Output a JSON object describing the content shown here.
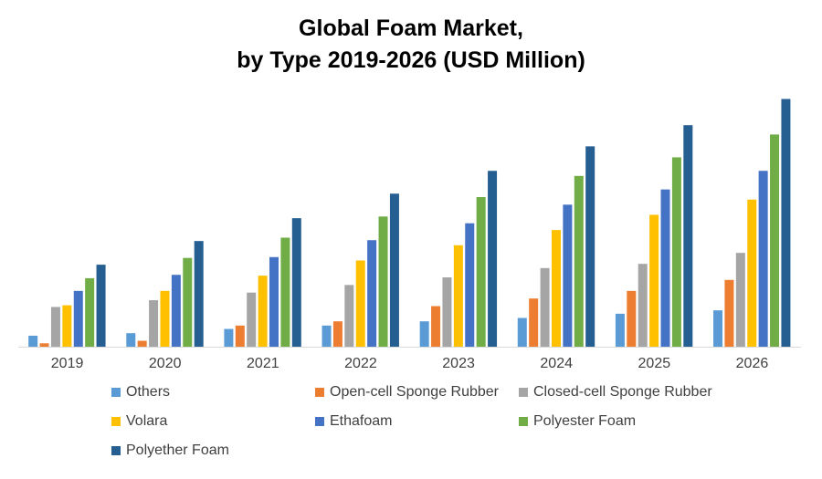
{
  "chart_data": {
    "type": "bar",
    "title_line1": "Global Foam Market,",
    "title_line2": "by Type 2019-2026 (USD Million)",
    "xlabel": "",
    "ylabel": "",
    "categories": [
      "2019",
      "2020",
      "2021",
      "2022",
      "2023",
      "2024",
      "2025",
      "2026"
    ],
    "ylim": [
      0,
      300
    ],
    "grid": false,
    "legend_position": "bottom",
    "series": [
      {
        "name": "Others",
        "color": "#5B9BD5",
        "values": [
          13,
          16,
          21,
          25,
          30,
          34,
          39,
          43
        ]
      },
      {
        "name": "Open-cell Sponge Rubber",
        "color": "#ED7D31",
        "values": [
          4,
          7,
          25,
          30,
          48,
          57,
          66,
          79
        ]
      },
      {
        "name": "Closed-cell Sponge Rubber",
        "color": "#A5A5A5",
        "values": [
          47,
          55,
          64,
          73,
          82,
          93,
          98,
          111
        ]
      },
      {
        "name": "Volara",
        "color": "#FFC000",
        "values": [
          49,
          66,
          84,
          102,
          120,
          138,
          156,
          174
        ]
      },
      {
        "name": "Ethafoam",
        "color": "#4472C4",
        "values": [
          66,
          85,
          106,
          126,
          146,
          168,
          186,
          208
        ]
      },
      {
        "name": "Polyester Foam",
        "color": "#70AD47",
        "values": [
          81,
          105,
          129,
          154,
          177,
          202,
          224,
          251
        ]
      },
      {
        "name": "Polyether Foam",
        "color": "#255E91",
        "values": [
          97,
          125,
          152,
          181,
          208,
          237,
          262,
          293
        ]
      }
    ]
  }
}
